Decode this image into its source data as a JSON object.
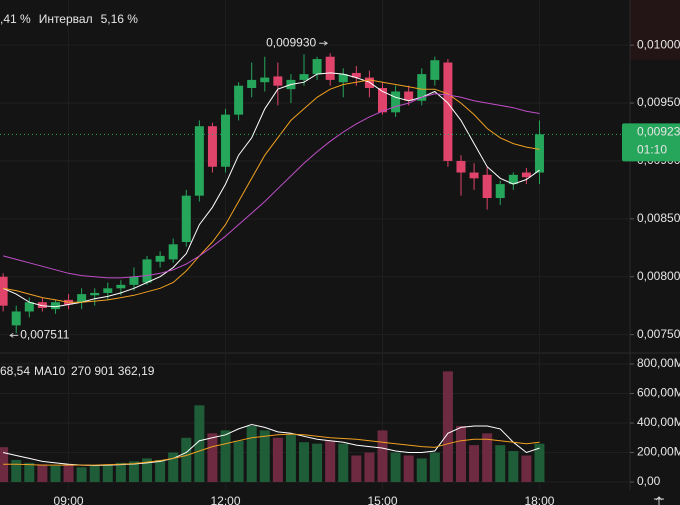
{
  "header": [
    {
      "text": ",41 %",
      "color": "#26a65b"
    },
    {
      "text": "Интервал",
      "color": "#e6e6e6"
    },
    {
      "text": "5,16 %",
      "color": "#26a65b"
    }
  ],
  "chart_data": [
    {
      "type": "candlestick",
      "x": [
        7.75,
        8,
        8.25,
        8.5,
        8.75,
        9,
        9.25,
        9.5,
        9.75,
        10,
        10.25,
        10.5,
        10.75,
        11,
        11.25,
        11.5,
        11.75,
        12,
        12.25,
        12.5,
        12.75,
        13,
        13.25,
        13.5,
        13.75,
        14,
        14.25,
        14.5,
        14.75,
        15,
        15.25,
        15.5,
        15.75,
        16,
        16.25,
        16.5,
        16.75,
        17,
        17.25,
        17.5,
        17.75,
        18
      ],
      "open": [
        0.008,
        0.00758,
        0.0077,
        0.00778,
        0.00772,
        0.0078,
        0.00778,
        0.00784,
        0.00786,
        0.0079,
        0.00793,
        0.00795,
        0.00813,
        0.00815,
        0.0083,
        0.0087,
        0.0093,
        0.00895,
        0.0094,
        0.00963,
        0.00968,
        0.00973,
        0.00962,
        0.0097,
        0.00975,
        0.0099,
        0.00968,
        0.00976,
        0.00972,
        0.00963,
        0.00942,
        0.0096,
        0.00952,
        0.0097,
        0.00985,
        0.009,
        0.0089,
        0.00888,
        0.00868,
        0.0088,
        0.0089,
        0.0089
      ],
      "high": [
        0.00803,
        0.00775,
        0.00782,
        0.00782,
        0.0078,
        0.00785,
        0.0079,
        0.0079,
        0.00795,
        0.00797,
        0.00808,
        0.00818,
        0.00822,
        0.00833,
        0.00875,
        0.00935,
        0.00933,
        0.00945,
        0.00968,
        0.00985,
        0.0099,
        0.00985,
        0.00975,
        0.00992,
        0.0099,
        0.00993,
        0.0098,
        0.00982,
        0.00978,
        0.00968,
        0.00965,
        0.00965,
        0.0098,
        0.0099,
        0.00988,
        0.00905,
        0.00898,
        0.00895,
        0.00883,
        0.0089,
        0.00894,
        0.00935
      ],
      "low": [
        0.0077,
        0.007511,
        0.00765,
        0.0077,
        0.00768,
        0.00772,
        0.00772,
        0.00775,
        0.0078,
        0.00784,
        0.00788,
        0.00793,
        0.00808,
        0.00812,
        0.00826,
        0.00865,
        0.0089,
        0.0089,
        0.00935,
        0.00955,
        0.0096,
        0.00948,
        0.0095,
        0.00965,
        0.0097,
        0.00965,
        0.00955,
        0.00965,
        0.00955,
        0.0094,
        0.00938,
        0.00948,
        0.00948,
        0.00965,
        0.00895,
        0.0087,
        0.00875,
        0.00858,
        0.00862,
        0.00875,
        0.0088,
        0.0088
      ],
      "close": [
        0.00775,
        0.0077,
        0.00778,
        0.00773,
        0.00778,
        0.00776,
        0.00785,
        0.00786,
        0.0079,
        0.00793,
        0.008,
        0.00815,
        0.00818,
        0.00828,
        0.0087,
        0.0093,
        0.00895,
        0.0094,
        0.00965,
        0.0097,
        0.00972,
        0.00965,
        0.0097,
        0.00975,
        0.00988,
        0.0097,
        0.00975,
        0.00972,
        0.00963,
        0.00942,
        0.0096,
        0.00952,
        0.00975,
        0.00987,
        0.009,
        0.0089,
        0.00885,
        0.00868,
        0.0088,
        0.00888,
        0.00886,
        0.00923
      ],
      "up_color": "#26a65b",
      "down_color": "#e0446a",
      "moving_averages": [
        {
          "color": "#ffffff",
          "values": [
            0.0079,
            0.00785,
            0.00778,
            0.00775,
            0.00774,
            0.00776,
            0.00778,
            0.00781,
            0.00783,
            0.00786,
            0.0079,
            0.00795,
            0.008,
            0.00808,
            0.0082,
            0.00845,
            0.0086,
            0.0088,
            0.00905,
            0.0092,
            0.00945,
            0.00962,
            0.00966,
            0.00968,
            0.00975,
            0.00976,
            0.00975,
            0.00972,
            0.00968,
            0.0096,
            0.00955,
            0.00952,
            0.00955,
            0.0096,
            0.0095,
            0.00935,
            0.00915,
            0.00895,
            0.00885,
            0.0088,
            0.00884,
            0.00892
          ]
        },
        {
          "color": "#f0a020",
          "values": [
            0.0079,
            0.00788,
            0.00785,
            0.00782,
            0.0078,
            0.00778,
            0.00778,
            0.00779,
            0.0078,
            0.00782,
            0.00784,
            0.00787,
            0.0079,
            0.00795,
            0.00805,
            0.00818,
            0.0083,
            0.00845,
            0.00865,
            0.00885,
            0.00905,
            0.0092,
            0.00935,
            0.00945,
            0.00955,
            0.00962,
            0.00966,
            0.00968,
            0.0097,
            0.00968,
            0.00966,
            0.00964,
            0.00962,
            0.00962,
            0.00958,
            0.0095,
            0.0094,
            0.00928,
            0.0092,
            0.00915,
            0.00912,
            0.0091
          ]
        },
        {
          "color": "#c04ec8",
          "values": [
            0.00818,
            0.00815,
            0.00812,
            0.00809,
            0.00806,
            0.00803,
            0.00801,
            0.008,
            0.00799,
            0.00799,
            0.008,
            0.00801,
            0.00803,
            0.00806,
            0.00811,
            0.00818,
            0.00826,
            0.00835,
            0.00845,
            0.00855,
            0.00865,
            0.00876,
            0.00887,
            0.00898,
            0.00908,
            0.00917,
            0.00925,
            0.00932,
            0.00938,
            0.00943,
            0.00947,
            0.0095,
            0.00955,
            0.00958,
            0.00957,
            0.00955,
            0.00952,
            0.0095,
            0.00948,
            0.00946,
            0.00943,
            0.00941
          ]
        }
      ],
      "xlim": [
        7.69,
        19.73
      ],
      "xticks": [
        {
          "value": 9,
          "label": "09:00"
        },
        {
          "value": 12,
          "label": "12:00"
        },
        {
          "value": 15,
          "label": "15:00"
        },
        {
          "value": 18,
          "label": "18:00"
        }
      ],
      "ylim": [
        0.00735,
        0.01039
      ],
      "yticks": [
        {
          "value": 0.0075,
          "label": "0,00750"
        },
        {
          "value": 0.008,
          "label": "0,00800"
        },
        {
          "value": 0.0085,
          "label": "0,00850"
        },
        {
          "value": 0.009,
          "label": "0,00900"
        },
        {
          "value": 0.0095,
          "label": "0,00950"
        },
        {
          "value": 0.01,
          "label": "0,01000"
        }
      ],
      "high_label": {
        "value": 0.00993,
        "label": "0,009930"
      },
      "low_label": {
        "value": 0.007511,
        "label": "0,007511"
      },
      "current_price": {
        "value": 0.00923,
        "label": "0,00923",
        "timer": "01:10",
        "color": "#26a65b"
      },
      "grid": true
    },
    {
      "type": "bar",
      "header_value": "68,54",
      "legend_label": "MA10",
      "legend_value": "270 901 362,19",
      "legend_color": "#f0a020",
      "values": [
        236,
        150,
        130,
        120,
        110,
        120,
        100,
        110,
        120,
        130,
        140,
        160,
        150,
        200,
        300,
        520,
        330,
        350,
        280,
        380,
        350,
        300,
        320,
        270,
        260,
        280,
        260,
        180,
        200,
        350,
        200,
        180,
        160,
        200,
        750,
        380,
        250,
        330,
        250,
        210,
        180,
        260
      ],
      "up_color": "#1f5c38",
      "down_color": "#6e2a40",
      "moving_averages": [
        {
          "color": "#ffffff",
          "values": [
            200,
            180,
            160,
            140,
            130,
            120,
            115,
            112,
            115,
            118,
            122,
            130,
            140,
            160,
            200,
            280,
            300,
            320,
            360,
            390,
            370,
            340,
            330,
            310,
            290,
            280,
            270,
            250,
            240,
            230,
            210,
            200,
            200,
            210,
            330,
            370,
            380,
            380,
            360,
            270,
            200,
            230
          ]
        },
        {
          "color": "#f0a020",
          "values": [
            120,
            120,
            118,
            115,
            115,
            115,
            115,
            115,
            118,
            120,
            125,
            135,
            145,
            160,
            180,
            210,
            240,
            260,
            280,
            300,
            310,
            320,
            325,
            320,
            310,
            300,
            295,
            290,
            280,
            270,
            260,
            250,
            240,
            235,
            260,
            280,
            290,
            290,
            280,
            270,
            260,
            270
          ]
        }
      ],
      "ylim": [
        -54,
        861
      ],
      "yticks": [
        {
          "value": 0,
          "label": "0,00"
        },
        {
          "value": 200,
          "label": "200,00M"
        },
        {
          "value": 400,
          "label": "400,00M"
        },
        {
          "value": 600,
          "label": "600,00M"
        },
        {
          "value": 800,
          "label": "800,00M"
        }
      ]
    }
  ]
}
